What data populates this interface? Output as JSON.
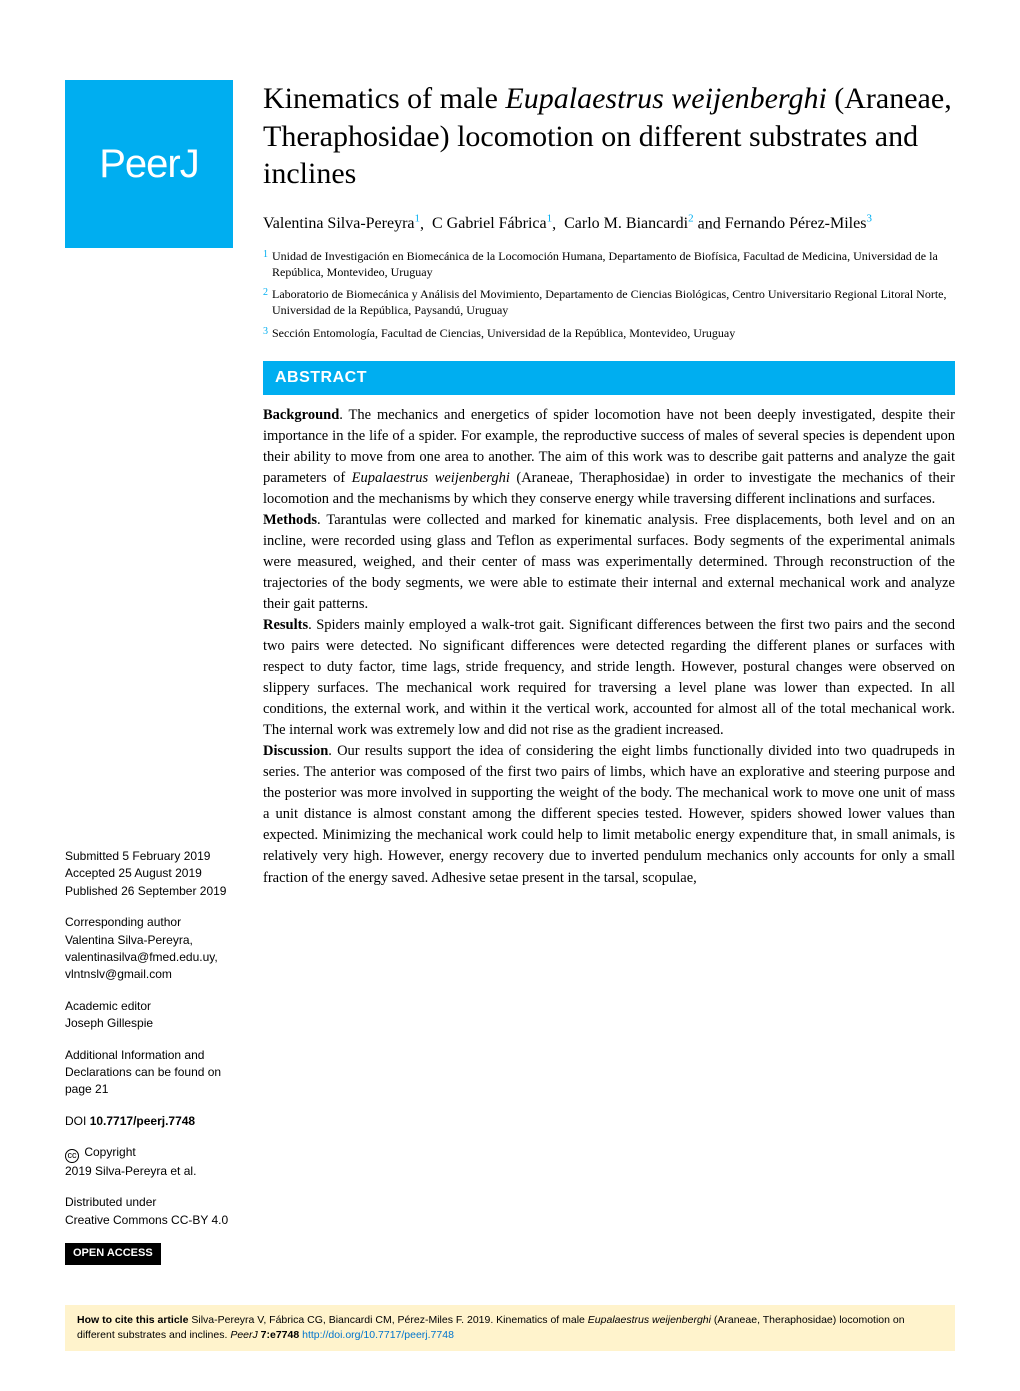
{
  "logo": "PeerJ",
  "title_plain_pre": "Kinematics of male ",
  "title_italic": "Eupalaestrus weijenberghi",
  "title_plain_post": " (Araneae, Theraphosidae) locomotion on different substrates and inclines",
  "authors": [
    {
      "name": "Valentina Silva-Pereyra",
      "sup": "1"
    },
    {
      "name": "C Gabriel Fábrica",
      "sup": "1"
    },
    {
      "name": "Carlo M. Biancardi",
      "sup": "2"
    },
    {
      "name": "Fernando Pérez-Miles",
      "sup": "3"
    }
  ],
  "affiliations": [
    {
      "num": "1",
      "text": "Unidad de Investigación en Biomecánica de la Locomoción Humana, Departamento de Biofísica, Facultad de Medicina, Universidad de la República, Montevideo, Uruguay"
    },
    {
      "num": "2",
      "text": "Laboratorio de Biomecánica y Análisis del Movimiento, Departamento de Ciencias Biológicas, Centro Universitario Regional Litoral Norte, Universidad de la República, Paysandú, Uruguay"
    },
    {
      "num": "3",
      "text": "Sección Entomología, Facultad de Ciencias, Universidad de la República, Montevideo, Uruguay"
    }
  ],
  "abstract_label": "ABSTRACT",
  "abstract_sections": {
    "background_label": "Background",
    "background_text": ". The mechanics and energetics of spider locomotion have not been deeply investigated, despite their importance in the life of a spider. For example, the reproductive success of males of several species is dependent upon their ability to move from one area to another. The aim of this work was to describe gait patterns and analyze the gait parameters of ",
    "background_italic": "Eupalaestrus weijenberghi",
    "background_text2": " (Araneae, Theraphosidae) in order to investigate the mechanics of their locomotion and the mechanisms by which they conserve energy while traversing different inclinations and surfaces.",
    "methods_label": "Methods",
    "methods_text": ". Tarantulas were collected and marked for kinematic analysis. Free displacements, both level and on an incline, were recorded using glass and Teflon as experimental surfaces. Body segments of the experimental animals were measured, weighed, and their center of mass was experimentally determined. Through reconstruction of the trajectories of the body segments, we were able to estimate their internal and external mechanical work and analyze their gait patterns.",
    "results_label": "Results",
    "results_text": ". Spiders mainly employed a walk-trot gait. Significant differences between the first two pairs and the second two pairs were detected. No significant differences were detected regarding the different planes or surfaces with respect to duty factor, time lags, stride frequency, and stride length. However, postural changes were observed on slippery surfaces. The mechanical work required for traversing a level plane was lower than expected. In all conditions, the external work, and within it the vertical work, accounted for almost all of the total mechanical work. The internal work was extremely low and did not rise as the gradient increased.",
    "discussion_label": "Discussion",
    "discussion_text": ". Our results support the idea of considering the eight limbs functionally divided into two quadrupeds in series. The anterior was composed of the first two pairs of limbs, which have an explorative and steering purpose and the posterior was more involved in supporting the weight of the body. The mechanical work to move one unit of mass a unit distance is almost constant among the different species tested. However, spiders showed lower values than expected. Minimizing the mechanical work could help to limit metabolic energy expenditure that, in small animals, is relatively very high. However, energy recovery due to inverted pendulum mechanics only accounts for only a small fraction of the energy saved. Adhesive setae present in the tarsal, scopulae,"
  },
  "sidebar": {
    "submitted_label": "Submitted",
    "submitted_date": "5 February 2019",
    "accepted_label": "Accepted",
    "accepted_date": "25 August 2019",
    "published_label": "Published",
    "published_date": "26 September 2019",
    "corresponding_label": "Corresponding author",
    "corresponding_name": "Valentina Silva-Pereyra,",
    "corresponding_email1": "valentinasilva@fmed.edu.uy,",
    "corresponding_email2": "vlntnslv@gmail.com",
    "editor_label": "Academic editor",
    "editor_name": "Joseph Gillespie",
    "additional_info": "Additional Information and Declarations can be found on page 21",
    "doi_label": "DOI",
    "doi_value": "10.7717/peerj.7748",
    "copyright_label": "Copyright",
    "copyright_text": "2019 Silva-Pereyra et al.",
    "distributed_label": "Distributed under",
    "distributed_text": "Creative Commons CC-BY 4.0",
    "open_access": "OPEN ACCESS"
  },
  "citation": {
    "prefix": "How to cite this article",
    "authors": " Silva-Pereyra V, Fábrica CG, Biancardi CM, Pérez-Miles F. 2019. Kinematics of male ",
    "italic1": "Eupalaestrus weijenberghi",
    "text2": " (Araneae, Theraphosidae) locomotion on different substrates and inclines. ",
    "italic2": "PeerJ",
    "text3": " 7:e7748 ",
    "link": "http://doi.org/10.7717/peerj.7748"
  },
  "colors": {
    "brand": "#00aef0",
    "citation_bg": "#fff3cc",
    "link": "#0074cc"
  },
  "typography": {
    "title_size": 30,
    "body_size": 14.5,
    "sidebar_size": 12,
    "citation_size": 10.5
  }
}
